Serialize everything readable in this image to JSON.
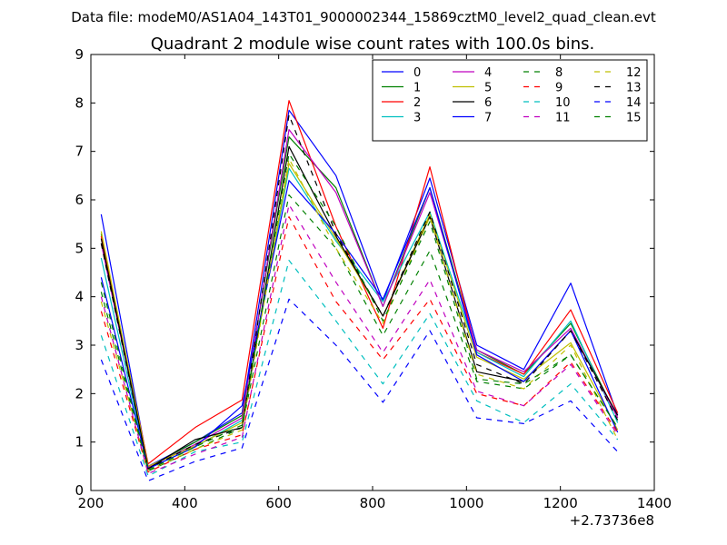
{
  "suptitle": "Data file: modeM0/AS1A04_143T01_9000002344_15869cztM0_level2_quad_clean.evt",
  "chart_data": {
    "type": "line",
    "title": "Quadrant 2 module wise count rates with 100.0s bins.",
    "xlabel": "",
    "ylabel": "",
    "x_offset_label": "+2.73736e8",
    "xlim": [
      200,
      1400
    ],
    "ylim": [
      0,
      9
    ],
    "x_ticks": [
      200,
      400,
      600,
      800,
      1000,
      1200,
      1400
    ],
    "y_ticks": [
      0,
      1,
      2,
      3,
      4,
      5,
      6,
      7,
      8,
      9
    ],
    "grid": false,
    "legend_placement": "top-right",
    "legend_columns": 4,
    "x": [
      222,
      322,
      422,
      522,
      622,
      722,
      822,
      922,
      1022,
      1122,
      1222,
      1322
    ],
    "series": [
      {
        "name": "0",
        "color": "#0000ff",
        "style": "solid",
        "values": [
          5.7,
          0.5,
          1.0,
          1.6,
          7.85,
          6.5,
          3.9,
          6.45,
          3.0,
          2.5,
          4.28,
          1.55
        ]
      },
      {
        "name": "1",
        "color": "#008000",
        "style": "solid",
        "values": [
          5.3,
          0.48,
          1.0,
          1.55,
          7.3,
          6.25,
          3.8,
          6.25,
          2.9,
          2.4,
          3.45,
          1.5
        ]
      },
      {
        "name": "2",
        "color": "#ff0000",
        "style": "solid",
        "values": [
          5.25,
          0.55,
          1.3,
          1.87,
          8.05,
          5.45,
          3.35,
          6.68,
          2.85,
          2.4,
          3.73,
          1.6
        ]
      },
      {
        "name": "3",
        "color": "#00bfbf",
        "style": "solid",
        "values": [
          4.8,
          0.45,
          0.9,
          1.45,
          6.65,
          5.15,
          3.9,
          5.75,
          2.85,
          2.35,
          3.5,
          1.4
        ]
      },
      {
        "name": "4",
        "color": "#bf00bf",
        "style": "solid",
        "values": [
          5.1,
          0.48,
          0.95,
          1.5,
          7.45,
          6.15,
          3.8,
          6.15,
          2.9,
          2.45,
          3.35,
          1.5
        ]
      },
      {
        "name": "5",
        "color": "#bfbf00",
        "style": "solid",
        "values": [
          5.35,
          0.5,
          0.92,
          1.4,
          6.75,
          5.2,
          3.6,
          5.7,
          2.75,
          2.3,
          3.05,
          1.25
        ]
      },
      {
        "name": "6",
        "color": "#000000",
        "style": "solid",
        "values": [
          5.2,
          0.45,
          1.05,
          1.3,
          7.1,
          5.25,
          3.6,
          5.65,
          2.45,
          2.25,
          3.3,
          1.55
        ]
      },
      {
        "name": "7",
        "color": "#0000ff",
        "style": "solid",
        "values": [
          4.4,
          0.45,
          0.9,
          1.75,
          6.4,
          5.3,
          3.95,
          6.25,
          2.8,
          2.25,
          3.3,
          1.2
        ]
      },
      {
        "name": "8",
        "color": "#008000",
        "style": "dashed",
        "values": [
          4.3,
          0.4,
          0.85,
          1.3,
          6.1,
          5.0,
          3.2,
          4.95,
          2.25,
          2.1,
          2.8,
          1.3
        ]
      },
      {
        "name": "9",
        "color": "#ff0000",
        "style": "dashed",
        "values": [
          3.7,
          0.38,
          0.85,
          1.15,
          5.65,
          3.9,
          2.7,
          3.95,
          2.0,
          1.75,
          2.65,
          1.2
        ]
      },
      {
        "name": "10",
        "color": "#00bfbf",
        "style": "dashed",
        "values": [
          3.2,
          0.3,
          0.8,
          1.0,
          4.75,
          3.5,
          2.2,
          3.65,
          1.85,
          1.4,
          2.2,
          1.05
        ]
      },
      {
        "name": "11",
        "color": "#bf00bf",
        "style": "dashed",
        "values": [
          4.0,
          0.35,
          0.75,
          1.1,
          5.9,
          4.3,
          2.85,
          4.35,
          2.05,
          1.75,
          2.6,
          1.15
        ]
      },
      {
        "name": "12",
        "color": "#bfbf00",
        "style": "dashed",
        "values": [
          3.9,
          0.42,
          0.85,
          1.25,
          6.85,
          5.0,
          3.45,
          5.65,
          2.4,
          2.1,
          3.0,
          1.05
        ]
      },
      {
        "name": "13",
        "color": "#000000",
        "style": "dashed",
        "values": [
          5.1,
          0.45,
          0.95,
          1.3,
          7.75,
          5.3,
          3.6,
          5.75,
          2.6,
          2.2,
          3.3,
          1.45
        ]
      },
      {
        "name": "14",
        "color": "#0000ff",
        "style": "dashed",
        "values": [
          2.7,
          0.2,
          0.6,
          0.88,
          3.95,
          3.0,
          1.82,
          3.3,
          1.5,
          1.38,
          1.85,
          0.8
        ]
      },
      {
        "name": "15",
        "color": "#008000",
        "style": "dashed",
        "values": [
          4.1,
          0.42,
          0.9,
          1.35,
          6.95,
          5.45,
          3.5,
          5.55,
          2.3,
          2.2,
          2.8,
          1.3
        ]
      }
    ]
  }
}
